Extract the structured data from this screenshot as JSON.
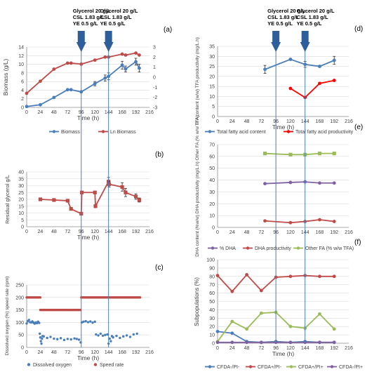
{
  "annotations": {
    "left": {
      "a": [
        "Glycerol 20 g/L",
        "CSL 1.83 g/L",
        "YE 0.5 g/L"
      ],
      "b": [
        "Glycerol 20 g/L",
        "CSL 1.83 g/L",
        "YE 0.5 g/L"
      ],
      "a_time": 96,
      "b_time": 144
    },
    "right": {
      "a": [
        "Glycerol 20 g/L",
        "CSL 1.83 g/L",
        "YE 0.5 g/L"
      ],
      "b": [
        "Glycerol 20 g/L",
        "CSL 1.83 g/L",
        "YE 0.5 g/L"
      ],
      "a_time": 96,
      "b_time": 144
    }
  },
  "colors": {
    "blue": "#4a7ebb",
    "red": "#be4b48",
    "pred": "#ff0000",
    "green": "#9bbb59",
    "purple": "#7f60a0",
    "arrow": "#2e5f9b",
    "grid": "#d9d9d9"
  },
  "chart_data": [
    {
      "id": "a",
      "type": "line",
      "panel_label": "(a)",
      "xlabel": "Time (h)",
      "xticks": [
        0,
        24,
        48,
        72,
        96,
        120,
        144,
        168,
        192,
        216
      ],
      "ylabel": "Biomass (g/L)",
      "ylim": [
        0,
        14
      ],
      "yticks": [
        0,
        2,
        4,
        6,
        8,
        10,
        12,
        14
      ],
      "y2lim": [
        -3,
        3
      ],
      "y2ticks": [
        -3,
        -2,
        -1,
        0,
        1,
        2,
        3
      ],
      "legend": "bottom",
      "series": [
        {
          "name": "Biomass",
          "axis": "left",
          "color": "blue",
          "x": [
            0,
            24,
            48,
            72,
            78,
            96,
            120,
            138,
            144,
            168,
            174,
            192,
            198
          ],
          "y": [
            0.2,
            0.6,
            2.3,
            4.1,
            4.1,
            3.6,
            5.5,
            6.8,
            7.2,
            9.8,
            8.9,
            10.6,
            9.1
          ],
          "err": [
            0,
            0,
            0,
            0,
            0,
            0,
            0.5,
            0.7,
            0.8,
            0.9,
            0.7,
            0.8,
            0.9
          ]
        },
        {
          "name": "Ln Biomass",
          "axis": "right",
          "color": "red",
          "x": [
            0,
            24,
            48,
            72,
            78,
            96,
            120,
            138,
            144,
            168,
            174,
            192,
            198
          ],
          "y": [
            -1.6,
            -0.4,
            0.8,
            1.4,
            1.4,
            1.3,
            1.7,
            2.0,
            2.0,
            2.3,
            2.2,
            2.4,
            2.2
          ]
        }
      ]
    },
    {
      "id": "b",
      "type": "line",
      "panel_label": "(b)",
      "xlabel": "Time  (h)",
      "xticks": [
        0,
        24,
        48,
        72,
        96,
        120,
        144,
        168,
        192,
        216
      ],
      "ylabel": "Residual glycerol  g/L",
      "ylim": [
        0,
        40
      ],
      "yticks": [
        0,
        5,
        10,
        15,
        20,
        25,
        30,
        35,
        40
      ],
      "series": [
        {
          "name": "",
          "color": "red",
          "x": [
            24,
            48,
            72,
            78,
            96,
            97,
            120,
            121,
            144,
            145,
            168,
            174,
            192,
            198
          ],
          "y": [
            20,
            19.5,
            19,
            13,
            9.5,
            25,
            25,
            15,
            33,
            31,
            29,
            25,
            22,
            19.5
          ],
          "err": [
            1,
            0.5,
            0.5,
            1,
            0.5,
            0.5,
            1,
            1,
            3,
            2,
            3,
            3,
            2,
            1.5
          ]
        }
      ]
    },
    {
      "id": "c",
      "type": "scatter",
      "panel_label": "(c)",
      "xlabel": "Time  (h)",
      "xticks": [
        0,
        24,
        48,
        72,
        96,
        120,
        144,
        168,
        192,
        216
      ],
      "ylabel": "Dissolved oxygen (%)  speed rate (rpm)",
      "ylim": [
        0,
        250
      ],
      "yticks": [
        0,
        50,
        100,
        150,
        200,
        250
      ],
      "legend": "bottom",
      "series": [
        {
          "name": "Dissolved oxygen",
          "color": "blue",
          "segments": [
            {
              "x": [
                0,
                2,
                4,
                6,
                8,
                10,
                12,
                14,
                16,
                18,
                20,
                22
              ],
              "y": [
                96,
                105,
                110,
                101,
                100,
                104,
                99,
                95,
                100,
                97,
                103,
                98
              ]
            },
            {
              "x": [
                23,
                24,
                25,
                26,
                27,
                28
              ],
              "y": [
                55,
                40,
                25,
                15,
                35,
                45
              ]
            },
            {
              "x": [
                30,
                36,
                42,
                48,
                54,
                60,
                66,
                72,
                78,
                84,
                88,
                92,
                95
              ],
              "y": [
                44,
                38,
                42,
                35,
                33,
                37,
                30,
                34,
                32,
                36,
                34,
                31,
                20
              ]
            },
            {
              "x": [
                97,
                100,
                104,
                108,
                112,
                116,
                120
              ],
              "y": [
                100,
                103,
                105,
                101,
                104,
                99,
                103
              ]
            },
            {
              "x": [
                122,
                126,
                130,
                134,
                138,
                142
              ],
              "y": [
                52,
                48,
                55,
                47,
                50,
                52
              ]
            },
            {
              "x": [
                144,
                146,
                148,
                150
              ],
              "y": [
                15,
                35,
                25,
                45
              ]
            },
            {
              "x": [
                152,
                158,
                164,
                170,
                176,
                182,
                188,
                194
              ],
              "y": [
                40,
                46,
                38,
                44,
                48,
                42,
                52,
                55
              ]
            }
          ]
        },
        {
          "name": "Speed rate",
          "color": "red",
          "segments": [
            {
              "x": [
                0,
                24
              ],
              "y": [
                200,
                200
              ],
              "step": 1.5
            },
            {
              "x": [
                24,
                95
              ],
              "y": [
                150,
                150
              ],
              "step": 1.5
            },
            {
              "x": [
                96,
                200
              ],
              "y": [
                200,
                200
              ],
              "step": 1.5
            }
          ]
        }
      ]
    },
    {
      "id": "d",
      "type": "line",
      "panel_label": "(d)",
      "xlabel": "Time (h)",
      "xticks": [
        0,
        24,
        48,
        72,
        96,
        120,
        144,
        168,
        192,
        216
      ],
      "ylabel": "TFA content (w/w)  TFA productivity (mg/L.h)",
      "ylim": [
        0,
        35
      ],
      "yticks": [
        0,
        5,
        10,
        15,
        20,
        25,
        30,
        35
      ],
      "legend": "bottom",
      "series": [
        {
          "name": "Total fatty acid content",
          "color": "blue",
          "x": [
            78,
            120,
            144,
            168,
            192
          ],
          "y": [
            23.5,
            28.5,
            26,
            25,
            28
          ],
          "err": [
            2,
            0.5,
            1.5,
            0.5,
            2
          ]
        },
        {
          "name": "Total fatty acid productivity",
          "color": "pred",
          "x": [
            120,
            144,
            168,
            192
          ],
          "y": [
            14,
            9.5,
            16.5,
            18
          ]
        }
      ]
    },
    {
      "id": "e",
      "type": "line",
      "panel_label": "(e)",
      "xlabel": "",
      "xticks": [
        0,
        24,
        48,
        72,
        96,
        120,
        144,
        168,
        192,
        216
      ],
      "ylabel": "DHA content (%w/w) DHA productivity (mg/L.h) Other FA (% w/w TFA)",
      "ylim": [
        0,
        70
      ],
      "yticks": [
        0,
        10,
        20,
        30,
        40,
        50,
        60,
        70
      ],
      "legend": "bottom",
      "series": [
        {
          "name": "% DHA",
          "color": "purple",
          "x": [
            78,
            120,
            144,
            168,
            192
          ],
          "y": [
            37,
            38,
            38.5,
            37.5,
            37.5
          ]
        },
        {
          "name": "DHA productivity",
          "color": "red",
          "x": [
            78,
            120,
            144,
            168,
            192
          ],
          "y": [
            5.5,
            4,
            5,
            6.5,
            5
          ]
        },
        {
          "name": "Other FA (% w/w TFA)",
          "color": "green",
          "x": [
            78,
            120,
            144,
            168,
            192
          ],
          "y": [
            62.5,
            61.5,
            61.5,
            62.5,
            62.5
          ]
        }
      ]
    },
    {
      "id": "f",
      "type": "line",
      "panel_label": "(f)",
      "xlabel": "Time (h)",
      "xticks": [
        0,
        24,
        48,
        72,
        96,
        120,
        144,
        168,
        192,
        216
      ],
      "ylabel": "Subpopulations (%)",
      "ylim": [
        0,
        100
      ],
      "yticks": [
        0,
        10,
        20,
        30,
        40,
        50,
        60,
        70,
        80,
        90,
        100
      ],
      "legend": "bottom",
      "series": [
        {
          "name": "CFDA-/PI-",
          "color": "blue",
          "x": [
            0,
            24,
            48,
            72,
            96,
            120,
            144,
            168,
            192
          ],
          "y": [
            14,
            12,
            2,
            1,
            2,
            1,
            2,
            1,
            1
          ]
        },
        {
          "name": "CFDA+/PI-",
          "color": "red",
          "x": [
            0,
            24,
            48,
            72,
            96,
            120,
            144,
            168,
            192
          ],
          "y": [
            81,
            62,
            82,
            63,
            79,
            80,
            81,
            80,
            80
          ]
        },
        {
          "name": "CFDA+/PI+",
          "color": "green",
          "x": [
            0,
            24,
            48,
            72,
            96,
            120,
            144,
            168,
            192
          ],
          "y": [
            2,
            26,
            17,
            36,
            37,
            20,
            18,
            35,
            17
          ]
        },
        {
          "name": "CFDA-/PI+",
          "color": "purple",
          "x": [
            0,
            24,
            48,
            72,
            96,
            120,
            144,
            168,
            192
          ],
          "y": [
            1,
            1,
            1,
            1,
            1,
            1,
            1,
            1,
            1
          ]
        }
      ]
    }
  ]
}
